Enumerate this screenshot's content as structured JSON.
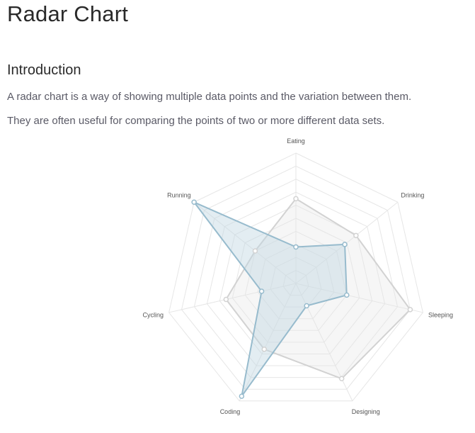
{
  "page": {
    "title": "Radar Chart",
    "section_heading": "Introduction",
    "paragraphs": [
      "A radar chart is a way of showing multiple data points and the variation between them.",
      "They are often useful for comparing the points of two or more different data sets."
    ]
  },
  "chart_data": {
    "type": "radar",
    "categories": [
      "Eating",
      "Drinking",
      "Sleeping",
      "Designing",
      "Coding",
      "Cycling",
      "Running"
    ],
    "rlim": [
      0,
      100
    ],
    "grid": true,
    "series": [
      {
        "values": [
          65,
          59,
          90,
          81,
          56,
          55,
          40
        ],
        "stroke": "#d2d2d2",
        "fill": "#e5e5e5",
        "point": "#d2d2d2"
      },
      {
        "values": [
          28,
          48,
          40,
          19,
          96,
          27,
          100
        ],
        "stroke": "#97bbcd",
        "fill": "#c2d7e2",
        "point": "#97bbcd"
      }
    ]
  }
}
